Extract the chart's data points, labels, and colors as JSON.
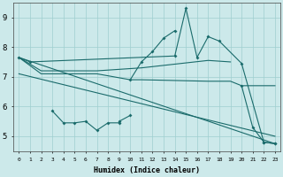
{
  "background_color": "#cce9ea",
  "grid_color": "#9fcfcf",
  "line_color": "#1a6b6b",
  "xlabel": "Humidex (Indice chaleur)",
  "xlim": [
    -0.5,
    23.5
  ],
  "ylim": [
    4.5,
    9.5
  ],
  "xtick_labels": [
    "0",
    "1",
    "2",
    "3",
    "4",
    "5",
    "6",
    "7",
    "8",
    "9",
    "10",
    "11",
    "12",
    "13",
    "14",
    "15",
    "16",
    "17",
    "18",
    "19",
    "20",
    "21",
    "22",
    "23"
  ],
  "ytick_labels": [
    "5",
    "6",
    "7",
    "8",
    "9"
  ],
  "series": [
    {
      "x": [
        0,
        1,
        14,
        15,
        16,
        17,
        18,
        20,
        22,
        23
      ],
      "y": [
        7.65,
        7.5,
        7.7,
        9.3,
        7.65,
        8.35,
        8.2,
        7.45,
        4.8,
        4.75
      ],
      "has_markers": true
    },
    {
      "x": [
        0,
        2,
        7,
        11,
        17,
        19
      ],
      "y": [
        7.65,
        7.2,
        7.2,
        7.3,
        7.55,
        7.5
      ],
      "has_markers": false
    },
    {
      "x": [
        0,
        2,
        7,
        10,
        11,
        17,
        19,
        20,
        22,
        23
      ],
      "y": [
        7.65,
        7.1,
        7.1,
        6.9,
        6.9,
        6.85,
        6.85,
        6.7,
        6.7,
        6.7
      ],
      "has_markers": false
    },
    {
      "x": [
        0,
        23
      ],
      "y": [
        7.65,
        4.75
      ],
      "has_markers": false
    },
    {
      "x": [
        0,
        23
      ],
      "y": [
        7.1,
        5.0
      ],
      "has_markers": false
    },
    {
      "x": [
        3,
        4,
        5,
        6,
        7,
        8,
        9,
        9,
        10
      ],
      "y": [
        5.85,
        5.45,
        5.45,
        5.5,
        5.2,
        5.45,
        5.45,
        5.5,
        5.7
      ],
      "has_markers": true
    },
    {
      "x": [
        10,
        11,
        12,
        13,
        14
      ],
      "y": [
        6.9,
        7.5,
        7.85,
        8.3,
        8.55
      ],
      "has_markers": true
    },
    {
      "x": [
        20,
        21,
        22,
        23
      ],
      "y": [
        6.7,
        5.3,
        4.8,
        4.75
      ],
      "has_markers": true
    }
  ]
}
